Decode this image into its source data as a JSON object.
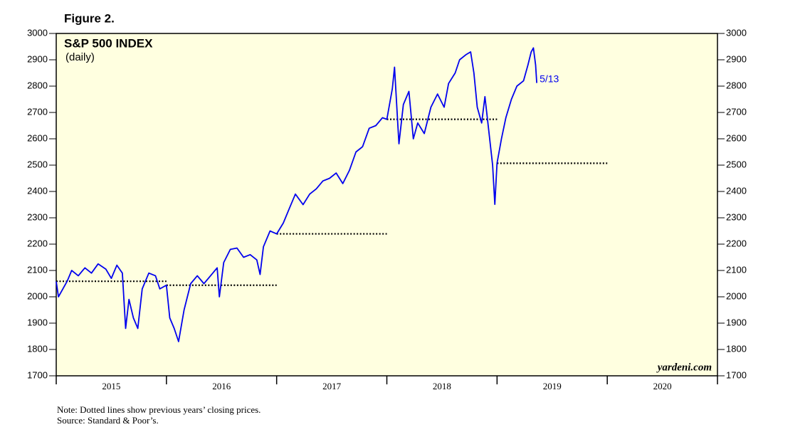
{
  "chart_data": {
    "type": "line",
    "figure_label": "Figure 2.",
    "title": "S&P 500 INDEX",
    "subtitle": "(daily)",
    "end_label": "5/13",
    "watermark": "yardeni.com",
    "notes": [
      "Note: Dotted lines show previous years’ closing prices.",
      "Source: Standard & Poor’s."
    ],
    "color": "#0000ee",
    "xlim": [
      2015,
      2021
    ],
    "xticks": [
      {
        "value": 2015.5,
        "label": "2015"
      },
      {
        "value": 2016.5,
        "label": "2016"
      },
      {
        "value": 2017.5,
        "label": "2017"
      },
      {
        "value": 2018.5,
        "label": "2018"
      },
      {
        "value": 2019.5,
        "label": "2019"
      },
      {
        "value": 2020.5,
        "label": "2020"
      }
    ],
    "year_boundaries": [
      2015,
      2016,
      2017,
      2018,
      2019,
      2020,
      2021
    ],
    "ylim": [
      1700,
      3000
    ],
    "yticks": [
      1700,
      1800,
      1900,
      2000,
      2100,
      2200,
      2300,
      2400,
      2500,
      2600,
      2700,
      2800,
      2900,
      3000
    ],
    "reference_lines": [
      {
        "value": 2059,
        "x": [
          2015,
          2016
        ]
      },
      {
        "value": 2044,
        "x": [
          2016,
          2017
        ]
      },
      {
        "value": 2239,
        "x": [
          2017,
          2018
        ]
      },
      {
        "value": 2674,
        "x": [
          2018,
          2019
        ]
      },
      {
        "value": 2507,
        "x": [
          2019,
          2020
        ]
      }
    ],
    "x": [
      2015.0,
      2015.02,
      2015.06,
      2015.1,
      2015.14,
      2015.2,
      2015.26,
      2015.32,
      2015.38,
      2015.45,
      2015.5,
      2015.55,
      2015.6,
      2015.63,
      2015.66,
      2015.7,
      2015.74,
      2015.78,
      2015.84,
      2015.9,
      2015.94,
      2016.0,
      2016.03,
      2016.07,
      2016.11,
      2016.16,
      2016.22,
      2016.28,
      2016.34,
      2016.4,
      2016.46,
      2016.48,
      2016.52,
      2016.58,
      2016.64,
      2016.7,
      2016.76,
      2016.82,
      2016.85,
      2016.88,
      2016.94,
      2017.0,
      2017.06,
      2017.12,
      2017.17,
      2017.24,
      2017.3,
      2017.36,
      2017.42,
      2017.48,
      2017.54,
      2017.6,
      2017.66,
      2017.72,
      2017.78,
      2017.84,
      2017.9,
      2017.96,
      2018.0,
      2018.05,
      2018.07,
      2018.1,
      2018.11,
      2018.15,
      2018.2,
      2018.24,
      2018.28,
      2018.34,
      2018.4,
      2018.46,
      2018.52,
      2018.56,
      2018.62,
      2018.66,
      2018.72,
      2018.76,
      2018.79,
      2018.82,
      2018.86,
      2018.89,
      2018.92,
      2018.96,
      2018.98,
      2019.0,
      2019.04,
      2019.08,
      2019.13,
      2019.18,
      2019.24,
      2019.28,
      2019.31,
      2019.33,
      2019.35,
      2019.36
    ],
    "values": [
      2058,
      2000,
      2030,
      2060,
      2100,
      2080,
      2110,
      2090,
      2125,
      2105,
      2070,
      2120,
      2090,
      1880,
      1990,
      1920,
      1880,
      2030,
      2090,
      2080,
      2030,
      2044,
      1920,
      1880,
      1830,
      1950,
      2050,
      2080,
      2050,
      2080,
      2110,
      2000,
      2130,
      2180,
      2185,
      2150,
      2160,
      2140,
      2085,
      2190,
      2250,
      2239,
      2280,
      2340,
      2390,
      2350,
      2390,
      2410,
      2440,
      2450,
      2470,
      2430,
      2480,
      2550,
      2570,
      2640,
      2650,
      2680,
      2674,
      2790,
      2872,
      2650,
      2581,
      2730,
      2780,
      2600,
      2660,
      2620,
      2720,
      2770,
      2720,
      2810,
      2850,
      2900,
      2920,
      2930,
      2850,
      2720,
      2660,
      2760,
      2650,
      2500,
      2351,
      2507,
      2600,
      2680,
      2750,
      2800,
      2820,
      2880,
      2930,
      2945,
      2880,
      2812
    ]
  }
}
